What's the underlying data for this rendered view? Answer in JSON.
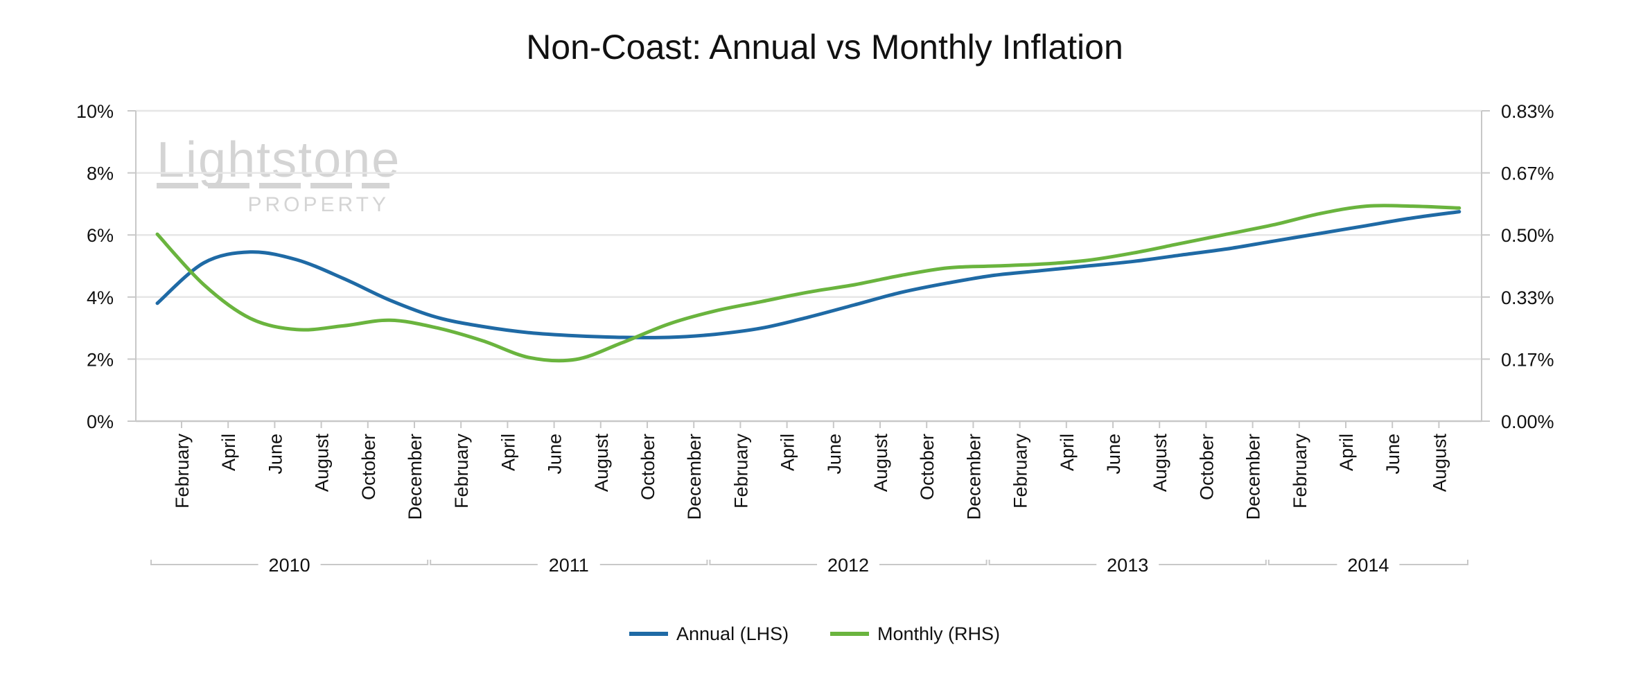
{
  "chart_data": {
    "type": "line",
    "title": "Non-Coast: Annual vs Monthly Inflation",
    "watermark": {
      "line1": "Lightstone",
      "line2": "PROPERTY"
    },
    "months": [
      "February",
      "April",
      "June",
      "August",
      "October",
      "December",
      "February",
      "April",
      "June",
      "August",
      "October",
      "December",
      "February",
      "April",
      "June",
      "August",
      "October",
      "December",
      "February",
      "April",
      "June",
      "August",
      "October",
      "December",
      "February",
      "April",
      "June",
      "August"
    ],
    "years": [
      "2010",
      "2011",
      "2012",
      "2013",
      "2014"
    ],
    "y_left": {
      "ticks": [
        "0%",
        "2%",
        "4%",
        "6%",
        "8%",
        "10%"
      ],
      "range": [
        0,
        10
      ],
      "label": ""
    },
    "y_right": {
      "ticks": [
        "0.00%",
        "0.17%",
        "0.33%",
        "0.50%",
        "0.67%",
        "0.83%"
      ],
      "range": [
        0,
        0.83
      ],
      "label": ""
    },
    "grid": true,
    "legend_position": "bottom",
    "x": [
      "2010-01",
      "2010-03",
      "2010-05",
      "2010-07",
      "2010-09",
      "2010-11",
      "2011-01",
      "2011-03",
      "2011-05",
      "2011-07",
      "2011-09",
      "2011-11",
      "2012-01",
      "2012-03",
      "2012-05",
      "2012-07",
      "2012-09",
      "2012-11",
      "2013-01",
      "2013-03",
      "2013-05",
      "2013-07",
      "2013-09",
      "2013-11",
      "2014-01",
      "2014-03",
      "2014-05",
      "2014-07",
      "2014-09"
    ],
    "series": [
      {
        "name": "Annual (LHS)",
        "axis": "left",
        "color": "#1f6aa5",
        "values": [
          3.8,
          5.1,
          5.45,
          5.2,
          4.6,
          3.9,
          3.35,
          3.05,
          2.85,
          2.75,
          2.7,
          2.7,
          2.8,
          3.0,
          3.35,
          3.75,
          4.15,
          4.45,
          4.7,
          4.85,
          5.0,
          5.15,
          5.35,
          5.55,
          5.8,
          6.05,
          6.3,
          6.55,
          6.75
        ]
      },
      {
        "name": "Monthly (RHS)",
        "axis": "right",
        "color": "#6ab43e",
        "values": [
          0.5,
          0.365,
          0.275,
          0.245,
          0.255,
          0.27,
          0.25,
          0.215,
          0.17,
          0.165,
          0.21,
          0.26,
          0.295,
          0.32,
          0.345,
          0.365,
          0.39,
          0.41,
          0.415,
          0.42,
          0.43,
          0.45,
          0.475,
          0.5,
          0.525,
          0.555,
          0.575,
          0.575,
          0.57
        ]
      }
    ]
  }
}
